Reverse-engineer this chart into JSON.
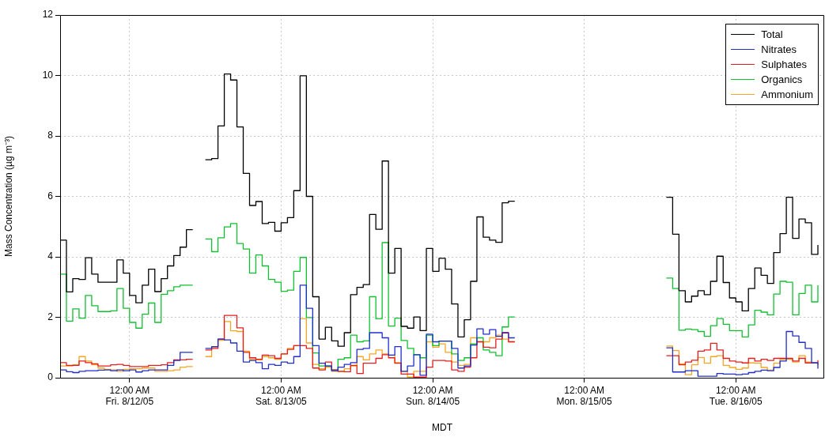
{
  "chart_data": {
    "type": "step",
    "xlabel": "MDT",
    "ylabel": "Mass Concentration (µg m⁻³)",
    "x": [
      "--08-11T13:00",
      "--08-11T14:00",
      "--08-11T15:00",
      "--08-11T16:00",
      "--08-11T17:00",
      "--08-11T18:00",
      "--08-11T19:00",
      "--08-11T20:00",
      "--08-11T21:00",
      "--08-11T22:00",
      "--08-11T23:00",
      "--08-12T00:00",
      "--08-12T01:00",
      "--08-12T02:00",
      "--08-12T03:00",
      "--08-12T04:00",
      "--08-12T05:00",
      "--08-12T06:00",
      "--08-12T07:00",
      "--08-12T08:00",
      "--08-12T09:00",
      "--08-12T10:00",
      "--08-12T11:00",
      "--08-12T12:00",
      "--08-12T13:00",
      "--08-12T14:00",
      "--08-12T15:00",
      "--08-12T16:00",
      "--08-12T17:00",
      "--08-12T18:00",
      "--08-12T19:00",
      "--08-12T20:00",
      "--08-12T21:00",
      "--08-12T22:00",
      "--08-12T23:00",
      "--08-13T00:00",
      "--08-13T01:00",
      "--08-13T02:00",
      "--08-13T03:00",
      "--08-13T04:00",
      "--08-13T05:00",
      "--08-13T06:00",
      "--08-13T07:00",
      "--08-13T08:00",
      "--08-13T09:00",
      "--08-13T10:00",
      "--08-13T11:00",
      "--08-13T12:00",
      "--08-13T13:00",
      "--08-13T14:00",
      "--08-13T15:00",
      "--08-13T16:00",
      "--08-13T17:00",
      "--08-13T18:00",
      "--08-13T19:00",
      "--08-13T20:00",
      "--08-13T21:00",
      "--08-13T22:00",
      "--08-13T23:00",
      "--08-14T00:00",
      "--08-14T01:00",
      "--08-14T02:00",
      "--08-14T03:00",
      "--08-14T04:00",
      "--08-14T05:00",
      "--08-14T06:00",
      "--08-14T07:00",
      "--08-14T08:00",
      "--08-14T09:00",
      "--08-14T10:00",
      "--08-14T11:00",
      "--08-14T12:00",
      "--08-14T13:00",
      "--08-14T14:00",
      "--08-14T15:00",
      "--08-14T16:00",
      "--08-14T17:00",
      "--08-14T18:00",
      "--08-14T19:00",
      "--08-14T20:00",
      "--08-14T21:00",
      "--08-14T22:00",
      "--08-14T23:00",
      "--08-15T00:00",
      "--08-15T01:00",
      "--08-15T02:00",
      "--08-15T03:00",
      "--08-15T04:00",
      "--08-15T05:00",
      "--08-15T06:00",
      "--08-15T07:00",
      "--08-15T08:00",
      "--08-15T09:00",
      "--08-15T10:00",
      "--08-15T11:00",
      "--08-15T12:00",
      "--08-15T13:00",
      "--08-15T14:00",
      "--08-15T15:00",
      "--08-15T16:00",
      "--08-15T17:00",
      "--08-15T18:00",
      "--08-15T19:00",
      "--08-15T20:00",
      "--08-15T21:00",
      "--08-15T22:00",
      "--08-15T23:00",
      "--08-16T00:00",
      "--08-16T01:00",
      "--08-16T02:00",
      "--08-16T03:00",
      "--08-16T04:00",
      "--08-16T05:00",
      "--08-16T06:00",
      "--08-16T07:00",
      "--08-16T08:00",
      "--08-16T09:00",
      "--08-16T10:00",
      "--08-16T11:00",
      "--08-16T12:00",
      "--08-16T13:00"
    ],
    "series": [
      {
        "name": "Total",
        "color": "#000000",
        "values": [
          4.55,
          2.84,
          3.28,
          3.25,
          3.97,
          3.43,
          3.16,
          3.16,
          3.16,
          3.9,
          3.46,
          2.72,
          2.48,
          3.06,
          3.59,
          2.85,
          3.28,
          3.7,
          4.04,
          4.32,
          4.9,
          null,
          null,
          7.21,
          7.25,
          8.33,
          10.05,
          9.85,
          8.3,
          6.76,
          5.7,
          5.83,
          5.1,
          5.14,
          4.85,
          5.13,
          5.3,
          6.19,
          9.99,
          6.0,
          2.68,
          1.28,
          1.67,
          1.22,
          1.04,
          1.49,
          2.75,
          2.99,
          3.08,
          5.4,
          4.91,
          7.17,
          3.46,
          4.28,
          1.7,
          1.64,
          2.01,
          1.56,
          4.28,
          3.52,
          3.95,
          3.59,
          2.44,
          1.35,
          1.92,
          3.19,
          5.32,
          4.65,
          4.55,
          4.48,
          5.79,
          5.84,
          null,
          null,
          null,
          null,
          null,
          null,
          null,
          null,
          null,
          null,
          null,
          null,
          null,
          null,
          null,
          null,
          null,
          null,
          null,
          null,
          null,
          null,
          null,
          null,
          5.97,
          4.75,
          2.88,
          2.51,
          2.7,
          2.88,
          2.75,
          3.19,
          4.02,
          3.15,
          2.64,
          2.51,
          2.21,
          2.95,
          3.63,
          3.39,
          3.12,
          4.14,
          4.77,
          5.97,
          4.61,
          5.25,
          5.13,
          4.08,
          4.39
        ]
      },
      {
        "name": "Nitrates",
        "color": "#1f2fc8",
        "values": [
          0.26,
          0.2,
          0.17,
          0.21,
          0.23,
          0.23,
          0.25,
          0.26,
          0.23,
          0.26,
          0.23,
          0.26,
          0.19,
          0.23,
          0.26,
          0.26,
          0.26,
          0.41,
          0.57,
          0.84,
          0.84,
          null,
          null,
          0.97,
          1.03,
          1.28,
          1.25,
          1.15,
          0.88,
          0.52,
          0.57,
          0.5,
          0.3,
          0.44,
          0.41,
          0.52,
          0.48,
          0.7,
          3.06,
          2.3,
          1.06,
          0.48,
          0.39,
          0.23,
          0.35,
          0.44,
          0.5,
          0.94,
          0.97,
          1.49,
          1.49,
          1.32,
          0.75,
          1.03,
          0.21,
          0.39,
          0.76,
          0.08,
          1.44,
          1.19,
          1.21,
          1.21,
          0.97,
          0.32,
          0.39,
          1.08,
          1.62,
          1.44,
          1.59,
          1.37,
          1.48,
          1.32,
          null,
          null,
          null,
          null,
          null,
          null,
          null,
          null,
          null,
          null,
          null,
          null,
          null,
          null,
          null,
          null,
          null,
          null,
          null,
          null,
          null,
          null,
          null,
          null,
          0.99,
          0.19,
          0.19,
          0.23,
          0.23,
          0.05,
          0.05,
          0.05,
          0.14,
          0.12,
          0.12,
          0.1,
          0.12,
          0.17,
          0.21,
          0.25,
          0.23,
          0.34,
          0.55,
          1.53,
          1.38,
          1.17,
          0.97,
          0.49,
          0.3
        ]
      },
      {
        "name": "Sulphates",
        "color": "#e41e1e",
        "values": [
          0.5,
          0.41,
          0.41,
          0.55,
          0.5,
          0.46,
          0.39,
          0.39,
          0.43,
          0.44,
          0.41,
          0.37,
          0.37,
          0.37,
          0.41,
          0.41,
          0.43,
          0.5,
          0.59,
          0.59,
          0.61,
          null,
          null,
          0.92,
          0.97,
          1.28,
          2.06,
          2.06,
          1.65,
          0.84,
          0.66,
          0.61,
          0.75,
          0.73,
          0.64,
          0.79,
          0.94,
          1.06,
          1.06,
          0.97,
          0.32,
          0.26,
          0.52,
          0.26,
          0.21,
          0.2,
          0.41,
          0.14,
          0.48,
          0.48,
          0.64,
          0.76,
          0.66,
          0.48,
          0.12,
          0.12,
          0.02,
          0.02,
          0.35,
          0.57,
          0.57,
          0.55,
          0.26,
          0.21,
          0.35,
          0.66,
          1.19,
          1.01,
          0.99,
          1.28,
          1.5,
          1.19,
          null,
          null,
          null,
          null,
          null,
          null,
          null,
          null,
          null,
          null,
          null,
          null,
          null,
          null,
          null,
          null,
          null,
          null,
          null,
          null,
          null,
          null,
          null,
          null,
          0.73,
          0.73,
          0.43,
          0.52,
          0.58,
          0.88,
          0.92,
          1.14,
          0.92,
          0.64,
          0.55,
          0.52,
          0.49,
          0.64,
          0.55,
          0.61,
          0.57,
          0.64,
          0.64,
          0.64,
          0.55,
          0.64,
          0.49,
          0.49,
          0.58
        ]
      },
      {
        "name": "Organics",
        "color": "#10c030",
        "values": [
          3.43,
          1.87,
          2.28,
          1.97,
          2.72,
          2.38,
          2.19,
          2.19,
          2.21,
          2.95,
          2.3,
          1.83,
          1.64,
          2.1,
          2.47,
          1.83,
          2.76,
          2.88,
          3.01,
          3.06,
          3.06,
          null,
          null,
          4.59,
          4.17,
          4.63,
          4.99,
          5.1,
          4.44,
          4.26,
          3.46,
          4.06,
          3.7,
          3.25,
          3.16,
          2.86,
          2.9,
          3.52,
          3.98,
          1.99,
          0.82,
          0.39,
          0.39,
          0.26,
          0.61,
          0.66,
          1.41,
          1.19,
          1.22,
          2.68,
          1.95,
          4.47,
          1.71,
          1.97,
          1.23,
          0.97,
          0.76,
          0.66,
          1.41,
          1.06,
          1.21,
          1.21,
          0.79,
          0.57,
          0.66,
          1.12,
          1.32,
          0.92,
          0.84,
          0.73,
          1.68,
          2.01,
          null,
          null,
          null,
          null,
          null,
          null,
          null,
          null,
          null,
          null,
          null,
          null,
          null,
          null,
          null,
          null,
          null,
          null,
          null,
          null,
          null,
          null,
          null,
          null,
          3.3,
          2.95,
          1.57,
          1.61,
          1.59,
          1.53,
          1.37,
          1.72,
          1.96,
          1.77,
          1.56,
          1.56,
          1.35,
          1.75,
          2.23,
          2.17,
          2.08,
          2.77,
          3.19,
          3.16,
          2.08,
          2.79,
          3.06,
          2.51,
          3.06
        ]
      },
      {
        "name": "Ammonium",
        "color": "#f5a623",
        "values": [
          0.39,
          0.39,
          0.43,
          0.7,
          0.55,
          0.43,
          0.32,
          0.28,
          0.26,
          0.21,
          0.28,
          0.3,
          0.3,
          0.32,
          0.32,
          0.21,
          0.21,
          0.23,
          0.26,
          0.35,
          0.37,
          null,
          null,
          0.7,
          1.01,
          1.24,
          1.86,
          1.55,
          1.53,
          0.88,
          0.61,
          0.59,
          0.7,
          0.66,
          0.61,
          0.79,
          0.97,
          1.06,
          1.95,
          1.15,
          0.44,
          0.3,
          0.35,
          0.21,
          0.2,
          0.3,
          0.39,
          0.7,
          0.59,
          0.79,
          0.92,
          0.79,
          0.75,
          0.5,
          0.21,
          0.02,
          0.21,
          0.21,
          1.19,
          1.01,
          1.12,
          0.84,
          0.52,
          0.41,
          0.44,
          1.32,
          1.19,
          1.19,
          1.32,
          1.41,
          1.28,
          1.19,
          null,
          null,
          null,
          null,
          null,
          null,
          null,
          null,
          null,
          null,
          null,
          null,
          null,
          null,
          null,
          null,
          null,
          null,
          null,
          null,
          null,
          null,
          null,
          null,
          1.05,
          0.9,
          0.46,
          0.1,
          0.43,
          0.67,
          0.48,
          0.7,
          0.73,
          0.41,
          0.34,
          0.28,
          0.32,
          0.49,
          0.48,
          0.34,
          0.25,
          0.48,
          0.61,
          0.61,
          0.52,
          0.73,
          0.52,
          0.49,
          0.41
        ]
      }
    ],
    "xlim": [
      "--08-11T13:00",
      "--08-16T14:00"
    ],
    "xticks": [
      {
        "value": "--08-12T00:00",
        "label": "12:00 AM\nFri. 8/12/05"
      },
      {
        "value": "--08-13T00:00",
        "label": "12:00 AM\nSat. 8/13/05"
      },
      {
        "value": "--08-14T00:00",
        "label": "12:00 AM\nSun. 8/14/05"
      },
      {
        "value": "--08-15T00:00",
        "label": "12:00 AM\nMon. 8/15/05"
      },
      {
        "value": "--08-16T00:00",
        "label": "12:00 AM\nTue. 8/16/05"
      }
    ],
    "ylim": [
      0,
      12
    ],
    "yticks": [
      0,
      2,
      4,
      6,
      8,
      10,
      12
    ],
    "grid": true,
    "legend": "top right"
  }
}
